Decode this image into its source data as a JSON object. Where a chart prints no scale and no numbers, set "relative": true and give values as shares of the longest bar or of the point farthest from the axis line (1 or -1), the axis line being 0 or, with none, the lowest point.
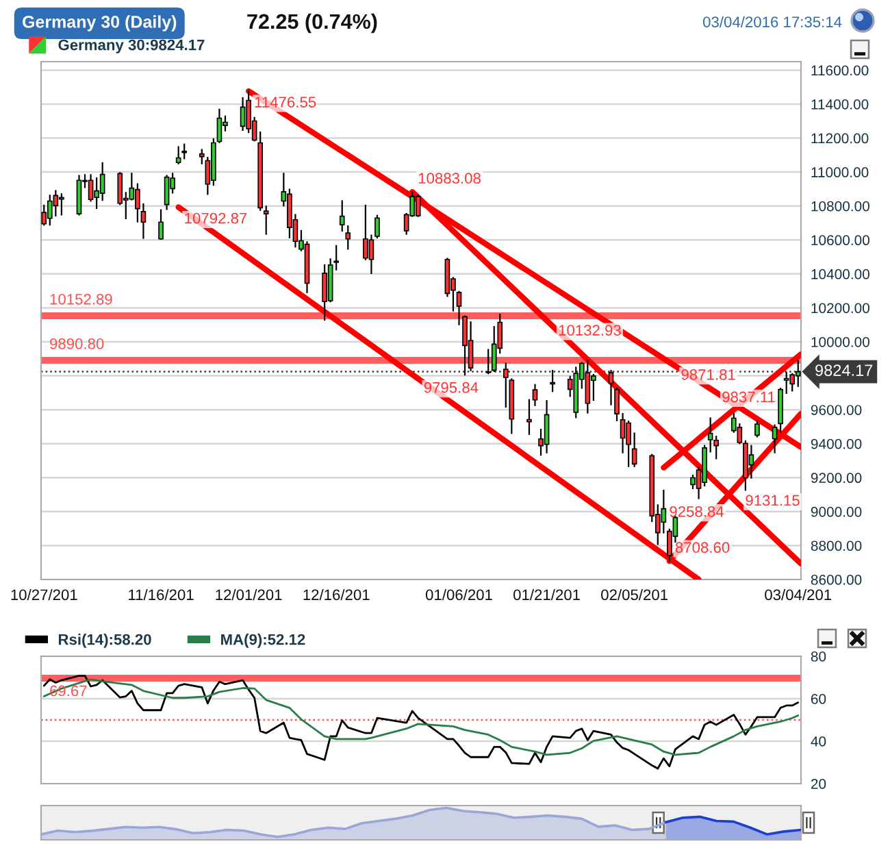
{
  "chart_data": [
    {
      "type": "candlestick",
      "title": "Germany 30 (Daily)",
      "subtitle": "72.25 (0.74%)",
      "annotations": [
        "03/04/2016 17:35:14",
        {
          "text": "11476.55",
          "x": "2015-12-01",
          "y": 11476.55
        },
        {
          "text": "10792.87",
          "x": "2015-11-19",
          "y": 10792.87
        },
        {
          "text": "10883.08",
          "x": "2015-12-29",
          "y": 10883.08
        },
        {
          "text": "9795.84",
          "x": "2015-12-30",
          "y": 9795.84
        },
        {
          "text": "10132.93",
          "x": "2016-01-22",
          "y": 10132.93
        },
        {
          "text": "9871.81",
          "x": "2016-02-12",
          "y": 9871.81
        },
        {
          "text": "9837.11",
          "x": "2016-02-19",
          "y": 9837.11
        },
        {
          "text": "9258.84",
          "x": "2016-02-10",
          "y": 9258.84
        },
        {
          "text": "9131.15",
          "x": "2016-02-23",
          "y": 9131.15
        },
        {
          "text": "8708.60",
          "x": "2016-02-11",
          "y": 8708.6
        }
      ],
      "x": [
        "2015-10-27",
        "2015-10-28",
        "2015-10-29",
        "2015-10-30",
        "2015-11-02",
        "2015-11-03",
        "2015-11-04",
        "2015-11-05",
        "2015-11-06",
        "2015-11-09",
        "2015-11-10",
        "2015-11-11",
        "2015-11-12",
        "2015-11-13",
        "2015-11-16",
        "2015-11-17",
        "2015-11-18",
        "2015-11-19",
        "2015-11-20",
        "2015-11-23",
        "2015-11-24",
        "2015-11-25",
        "2015-11-26",
        "2015-11-27",
        "2015-11-30",
        "2015-12-01",
        "2015-12-02",
        "2015-12-03",
        "2015-12-04",
        "2015-12-07",
        "2015-12-08",
        "2015-12-09",
        "2015-12-10",
        "2015-12-11",
        "2015-12-14",
        "2015-12-15",
        "2015-12-16",
        "2015-12-17",
        "2015-12-18",
        "2015-12-21",
        "2015-12-22",
        "2015-12-23",
        "2015-12-28",
        "2015-12-29",
        "2015-12-30",
        "2016-01-04",
        "2016-01-05",
        "2016-01-06",
        "2016-01-07",
        "2016-01-08",
        "2016-01-11",
        "2016-01-12",
        "2016-01-13",
        "2016-01-14",
        "2016-01-15",
        "2016-01-18",
        "2016-01-19",
        "2016-01-20",
        "2016-01-21",
        "2016-01-22",
        "2016-01-25",
        "2016-01-26",
        "2016-01-27",
        "2016-01-28",
        "2016-01-29",
        "2016-02-01",
        "2016-02-02",
        "2016-02-03",
        "2016-02-04",
        "2016-02-05",
        "2016-02-08",
        "2016-02-09",
        "2016-02-10",
        "2016-02-11",
        "2016-02-12",
        "2016-02-15",
        "2016-02-16",
        "2016-02-17",
        "2016-02-18",
        "2016-02-19",
        "2016-02-22",
        "2016-02-23",
        "2016-02-24",
        "2016-02-25",
        "2016-02-26",
        "2016-02-29",
        "2016-03-01",
        "2016-03-02",
        "2016-03-03",
        "2016-03-04"
      ],
      "series": [
        {
          "name": "Germany 30:9824.17",
          "ohlc": [
            [
              10762,
              10803,
              10689,
              10695
            ],
            [
              10727,
              10862,
              10689,
              10829
            ],
            [
              10862,
              10889,
              10743,
              10802
            ],
            [
              10850,
              10870,
              10749,
              10840
            ],
            [
              10754,
              10978,
              10749,
              10951
            ],
            [
              10945,
              10983,
              10910,
              10950
            ],
            [
              10951,
              10983,
              10830,
              10838
            ],
            [
              10851,
              10964,
              10787,
              10889
            ],
            [
              10875,
              11053,
              10835,
              10986
            ],
            [
              10991,
              10995,
              10810,
              10816
            ],
            [
              10845,
              10878,
              10727,
              10835
            ],
            [
              10840,
              10991,
              10837,
              10905
            ],
            [
              10897,
              10929,
              10708,
              10784
            ],
            [
              10767,
              10811,
              10611,
              10705
            ],
            [
              10606,
              10776,
              10606,
              10705
            ],
            [
              10808,
              10978,
              10781,
              10970
            ],
            [
              10902,
              10991,
              10878,
              10964
            ],
            [
              11056,
              11148,
              11050,
              11083
            ],
            [
              11115,
              11163,
              11080,
              11122
            ],
            [
              11107,
              11131,
              11050,
              11091
            ],
            [
              11067,
              11085,
              10870,
              10929
            ],
            [
              10951,
              11194,
              10924,
              11172
            ],
            [
              11180,
              11368,
              11175,
              11317
            ],
            [
              11274,
              11328,
              11244,
              11293
            ],
            [
              11269,
              11436,
              11247,
              11382
            ],
            [
              11422,
              11476.55,
              11234,
              11255
            ],
            [
              11301,
              11320,
              11185,
              11188
            ],
            [
              11172,
              11234,
              10776,
              10789
            ],
            [
              10770,
              10797,
              10635,
              10754
            ],
            [
              10829,
              10991,
              10802,
              10884
            ],
            [
              10870,
              10897,
              10614,
              10673
            ],
            [
              10719,
              10748,
              10560,
              10592
            ],
            [
              10546,
              10654,
              10538,
              10595
            ],
            [
              10574,
              10587,
              10291,
              10345
            ],
            [
              10404,
              10452,
              10129,
              10237
            ],
            [
              10242,
              10487,
              10237,
              10452
            ],
            [
              10468,
              10565,
              10425,
              10475
            ],
            [
              10689,
              10829,
              10654,
              10740
            ],
            [
              10641,
              10681,
              10547,
              10606
            ],
            [
              10606,
              10803,
              10485,
              10493
            ],
            [
              10600,
              10627,
              10404,
              10485
            ],
            [
              10622,
              10743,
              10614,
              10729
            ],
            [
              10749,
              10754,
              10635,
              10654
            ],
            [
              10743,
              10883.08,
              10740,
              10856
            ],
            [
              10856,
              10862,
              10740,
              10743
            ],
            [
              10485,
              10490,
              10269,
              10285
            ],
            [
              10371,
              10377,
              10183,
              10304
            ],
            [
              10291,
              10295,
              10102,
              10210
            ],
            [
              10148,
              10150,
              9806,
              9978
            ],
            [
              10008,
              10116,
              9832,
              9846
            ],
            [
              9822,
              9953,
              9814,
              9819
            ],
            [
              9833,
              10088,
              9827,
              9986
            ],
            [
              10115,
              10161,
              9935,
              9962
            ],
            [
              9838,
              9873,
              9617,
              9790
            ],
            [
              9774,
              9780,
              9462,
              9545
            ],
            [
              9542,
              9658,
              9456,
              9529
            ],
            [
              9717,
              9747,
              9626,
              9658
            ],
            [
              9428,
              9483,
              9334,
              9388
            ],
            [
              9396,
              9652,
              9348,
              9571
            ],
            [
              9752,
              9830,
              9709,
              9760
            ],
            [
              9779,
              9795,
              9680,
              9720
            ],
            [
              9585,
              9849,
              9555,
              9814
            ],
            [
              9779,
              9876,
              9728,
              9873
            ],
            [
              9818,
              9890,
              9582,
              9638
            ],
            [
              9773,
              9806,
              9657,
              9799
            ],
            [
              9818,
              9830,
              9631,
              9756
            ],
            [
              9719,
              9725,
              9537,
              9576
            ],
            [
              9541,
              9576,
              9348,
              9433
            ],
            [
              9522,
              9531,
              9267,
              9396
            ],
            [
              9369,
              9461,
              9267,
              9280
            ],
            [
              9329,
              9335,
              8943,
              8975
            ],
            [
              8983,
              9038,
              8808,
              8876
            ],
            [
              8938,
              9124,
              8876,
              9017
            ],
            [
              8884,
              8895,
              8708.6,
              8742
            ],
            [
              8855,
              8970,
              8822,
              8965
            ],
            [
              9159,
              9213,
              9137,
              9199
            ],
            [
              9245,
              9261,
              9078,
              9137
            ],
            [
              9172,
              9388,
              9153,
              9375
            ],
            [
              9423,
              9550,
              9353,
              9461
            ],
            [
              9420,
              9442,
              9313,
              9388
            ],
            [
              9477,
              9577,
              9469,
              9550
            ],
            [
              9496,
              9515,
              9402,
              9407
            ],
            [
              9401,
              9415,
              9127,
              9199
            ],
            [
              9275,
              9388,
              9199,
              9334
            ],
            [
              9450,
              9531,
              9442,
              9515
            ],
            [
              9429,
              9509,
              9348,
              9496
            ],
            [
              9518,
              9725,
              9469,
              9719
            ],
            [
              9774,
              9819,
              9698,
              9784
            ],
            [
              9806,
              9811,
              9712,
              9752
            ],
            [
              9800,
              9887,
              9739,
              9824.17
            ]
          ],
          "colors": [
            "#ff3333",
            "#33cc33",
            "#ff3333",
            "#ff3333",
            "#33cc33",
            "#33cc33",
            "#ff3333",
            "#33cc33",
            "#33cc33",
            "#ff3333",
            "#ff3333",
            "#33cc33",
            "#ff3333",
            "#ff3333",
            "#33cc33",
            "#33cc33",
            "#33cc33",
            "#33cc33",
            "#33cc33",
            "#ff3333",
            "#ff3333",
            "#33cc33",
            "#33cc33",
            "#33cc33",
            "#33cc33",
            "#ff3333",
            "#ff3333",
            "#ff3333",
            "#ff3333",
            "#33cc33",
            "#ff3333",
            "#ff3333",
            "#33cc33",
            "#ff3333",
            "#ff3333",
            "#33cc33",
            "#33cc33",
            "#33cc33",
            "#ff3333",
            "#ff3333",
            "#ff3333",
            "#33cc33",
            "#ff3333",
            "#33cc33",
            "#ff3333",
            "#ff3333",
            "#ff3333",
            "#ff3333",
            "#ff3333",
            "#ff3333",
            "#ff3333",
            "#33cc33",
            "#ff3333",
            "#ff3333",
            "#ff3333",
            "#ff3333",
            "#ff3333",
            "#ff3333",
            "#33cc33",
            "#33cc33",
            "#ff3333",
            "#33cc33",
            "#33cc33",
            "#ff3333",
            "#33cc33",
            "#ff3333",
            "#ff3333",
            "#ff3333",
            "#ff3333",
            "#ff3333",
            "#ff3333",
            "#ff3333",
            "#33cc33",
            "#ff3333",
            "#33cc33",
            "#33cc33",
            "#ff3333",
            "#33cc33",
            "#33cc33",
            "#ff3333",
            "#33cc33",
            "#ff3333",
            "#ff3333",
            "#33cc33",
            "#33cc33",
            "#33cc33",
            "#33cc33",
            "#33cc33",
            "#ff3333",
            "#33cc33"
          ]
        },
        {
          "type": "line",
          "color": "#ff0000",
          "x": [
            "2015-12-01",
            "2016-03-04T12:00"
          ],
          "values": [
            11476.55,
            9380
          ]
        },
        {
          "type": "line",
          "color": "#ff0000",
          "x": [
            "2015-12-29",
            "2016-03-04T12:00"
          ],
          "values": [
            10883.08,
            8693
          ]
        },
        {
          "type": "line",
          "color": "#ff0000",
          "x": [
            "2015-11-19",
            "2016-02-16"
          ],
          "values": [
            10792.87,
            8600
          ]
        },
        {
          "type": "line",
          "color": "#ff0000",
          "x": [
            "2016-02-10",
            "2016-03-04T12:00"
          ],
          "values": [
            9258.84,
            9927
          ]
        },
        {
          "type": "line",
          "color": "#ff0000",
          "x": [
            "2016-02-11",
            "2016-03-04T12:00"
          ],
          "values": [
            8708.6,
            9577
          ]
        }
      ],
      "xlim": [
        "2015-10-26T12:00",
        "2016-03-04T12:00"
      ],
      "xticks": [
        {
          "value": "2015-10-27",
          "label": "10/27/201"
        },
        {
          "value": "2015-11-16",
          "label": "11/16/201"
        },
        {
          "value": "2015-12-01",
          "label": "12/01/201"
        },
        {
          "value": "2015-12-16",
          "label": "12/16/201"
        },
        {
          "value": "2016-01-06",
          "label": "01/06/201"
        },
        {
          "value": "2016-01-21",
          "label": "01/21/201"
        },
        {
          "value": "2016-02-05",
          "label": "02/05/201"
        },
        {
          "value": "2016-03-04",
          "label": "03/04/201"
        }
      ],
      "ylim": [
        8600,
        11650
      ],
      "yticks": [
        {
          "value": 8600,
          "label": "8600.00"
        },
        {
          "value": 8800,
          "label": "8800.00"
        },
        {
          "value": 9000,
          "label": "9000.00"
        },
        {
          "value": 9200,
          "label": "9200.00"
        },
        {
          "value": 9400,
          "label": "9400.00"
        },
        {
          "value": 9600,
          "label": "9600.00"
        },
        {
          "value": 9800,
          "label": null
        },
        {
          "value": 10000,
          "label": "10000.00"
        },
        {
          "value": 10200,
          "label": "10200.00"
        },
        {
          "value": 10400,
          "label": "10400.00"
        },
        {
          "value": 10600,
          "label": "10600.00"
        },
        {
          "value": 10800,
          "label": "10800.00"
        },
        {
          "value": 11000,
          "label": "11000.00"
        },
        {
          "value": 11200,
          "label": "11200.00"
        },
        {
          "value": 11400,
          "label": "11400.00"
        },
        {
          "value": 11600,
          "label": "11600.00"
        }
      ],
      "ref_lines": [
        {
          "axis": "y",
          "value": 10152.89,
          "label": "10152.89",
          "color": "#ff4d4d"
        },
        {
          "axis": "y",
          "value": 9890.8,
          "label": "9890.80",
          "color": "#ff4d4d"
        },
        {
          "axis": "y",
          "value": 9824.17,
          "label": "9824.17",
          "color": "#3a3a3a",
          "line_style": "dotted"
        }
      ],
      "grid": "y",
      "legend": "top left"
    },
    {
      "type": "line",
      "x": [
        "2015-10-27",
        "2015-10-28",
        "2015-10-29",
        "2015-10-30",
        "2015-11-02",
        "2015-11-03",
        "2015-11-04",
        "2015-11-05",
        "2015-11-06",
        "2015-11-09",
        "2015-11-10",
        "2015-11-11",
        "2015-11-12",
        "2015-11-13",
        "2015-11-16",
        "2015-11-17",
        "2015-11-18",
        "2015-11-19",
        "2015-11-20",
        "2015-11-23",
        "2015-11-24",
        "2015-11-25",
        "2015-11-26",
        "2015-11-27",
        "2015-11-30",
        "2015-12-01",
        "2015-12-02",
        "2015-12-03",
        "2015-12-04",
        "2015-12-07",
        "2015-12-08",
        "2015-12-09",
        "2015-12-10",
        "2015-12-11",
        "2015-12-14",
        "2015-12-15",
        "2015-12-16",
        "2015-12-17",
        "2015-12-18",
        "2015-12-21",
        "2015-12-22",
        "2015-12-23",
        "2015-12-28",
        "2015-12-29",
        "2015-12-30",
        "2016-01-04",
        "2016-01-05",
        "2016-01-06",
        "2016-01-07",
        "2016-01-08",
        "2016-01-11",
        "2016-01-12",
        "2016-01-13",
        "2016-01-14",
        "2016-01-15",
        "2016-01-18",
        "2016-01-19",
        "2016-01-20",
        "2016-01-21",
        "2016-01-22",
        "2016-01-25",
        "2016-01-26",
        "2016-01-27",
        "2016-01-28",
        "2016-01-29",
        "2016-02-01",
        "2016-02-02",
        "2016-02-03",
        "2016-02-04",
        "2016-02-05",
        "2016-02-08",
        "2016-02-09",
        "2016-02-10",
        "2016-02-11",
        "2016-02-12",
        "2016-02-15",
        "2016-02-16",
        "2016-02-17",
        "2016-02-18",
        "2016-02-19",
        "2016-02-22",
        "2016-02-23",
        "2016-02-24",
        "2016-02-25",
        "2016-02-26",
        "2016-02-29",
        "2016-03-01",
        "2016-03-02",
        "2016-03-03",
        "2016-03-04"
      ],
      "series": [
        {
          "name": "Rsi(14):58.20",
          "color": "#000000",
          "values": [
            66.1,
            69.1,
            67.6,
            68.7,
            70.8,
            70.8,
            65.8,
            66.5,
            68.7,
            60.6,
            61.1,
            63.7,
            57.8,
            54.6,
            54.6,
            62.6,
            62.6,
            66.1,
            66.9,
            65.4,
            57.8,
            63.9,
            68,
            66.9,
            68.7,
            64.3,
            60.4,
            44.8,
            43.8,
            48.7,
            41.6,
            41,
            40.5,
            34,
            31.2,
            42.3,
            42.3,
            49.8,
            46.4,
            43.8,
            43.8,
            50.9,
            48.7,
            54.2,
            50.9,
            41,
            41,
            37.9,
            34.5,
            32.5,
            32.5,
            37.3,
            37.3,
            34.7,
            29.7,
            29.3,
            34.5,
            30.1,
            37.3,
            42.3,
            41.6,
            44.8,
            45.9,
            40.5,
            44.8,
            43.1,
            39.4,
            36.8,
            35.8,
            34,
            28.6,
            27.1,
            31.9,
            28.2,
            36.2,
            42.3,
            41,
            47.7,
            49.2,
            47.7,
            52.4,
            48.1,
            43.1,
            47,
            51.3,
            51.3,
            55.7,
            56.8,
            56.8,
            58.2
          ]
        },
        {
          "name": "MA(9):52.12",
          "color": "#2a7d4a",
          "x": [
            "2015-10-27",
            "2015-10-30",
            "2015-11-04",
            "2015-11-06",
            "2015-11-11",
            "2015-11-13",
            "2015-11-16",
            "2015-11-18",
            "2015-11-20",
            "2015-11-24",
            "2015-11-26",
            "2015-11-30",
            "2015-12-02",
            "2015-12-04",
            "2015-12-08",
            "2015-12-10",
            "2015-12-14",
            "2015-12-16",
            "2015-12-21",
            "2015-12-22",
            "2015-12-28",
            "2015-12-30",
            "2016-01-05",
            "2016-01-07",
            "2016-01-11",
            "2016-01-13",
            "2016-01-15",
            "2016-01-19",
            "2016-01-21",
            "2016-01-25",
            "2016-01-27",
            "2016-01-29",
            "2016-02-02",
            "2016-02-04",
            "2016-02-08",
            "2016-02-10",
            "2016-02-12",
            "2016-02-16",
            "2016-02-18",
            "2016-02-22",
            "2016-02-24",
            "2016-02-26",
            "2016-03-01",
            "2016-03-03",
            "2016-03-04"
          ],
          "values": [
            61.1,
            64.8,
            69.1,
            68.2,
            66.5,
            63.7,
            61.7,
            60.4,
            60.4,
            61.1,
            63.2,
            65,
            64.8,
            59.4,
            55.7,
            50.3,
            42.3,
            41,
            41,
            41.6,
            45.9,
            48.1,
            47,
            45.3,
            43.1,
            40.5,
            37.3,
            35.1,
            33.6,
            34.5,
            36.6,
            40.1,
            42.3,
            41,
            38.4,
            35.1,
            33.6,
            34.5,
            37.3,
            42.3,
            45.3,
            47,
            49.2,
            50.9,
            52.12
          ]
        }
      ],
      "xlim": [
        "2015-10-26T12:00",
        "2016-03-04T12:00"
      ],
      "ylim": [
        20,
        80
      ],
      "yticks": [
        20,
        40,
        60,
        80
      ],
      "ref_lines": [
        {
          "axis": "y",
          "value": 69.67,
          "label": "69.67",
          "color": "#ff4d4d"
        },
        {
          "axis": "y",
          "value": 50,
          "color": "#ff4d4d",
          "line_style": "dotted"
        }
      ],
      "grid": "y",
      "legend": "top left",
      "tick_labels": "y"
    },
    {
      "type": "area",
      "relative": true,
      "categories": [
        null,
        null,
        null,
        null,
        null,
        null,
        null,
        null,
        null,
        null,
        null,
        null,
        null,
        null,
        null,
        null,
        null,
        null,
        null,
        null,
        null,
        null,
        null,
        null,
        null,
        null,
        null,
        null,
        null,
        null,
        null,
        null,
        null,
        null,
        null,
        null,
        null,
        null,
        null,
        null,
        null,
        null,
        null,
        null,
        null,
        null
      ],
      "series": [
        {
          "color": "#9aa6d6",
          "values": [
            0.17,
            0.29,
            0.24,
            0.28,
            0.34,
            0.4,
            0.38,
            0.4,
            0.33,
            0.21,
            0.24,
            0.31,
            0.29,
            0.17,
            0.09,
            0.17,
            0.31,
            0.38,
            0.34,
            0.52,
            0.59,
            0.66,
            0.76,
            0.93,
            1,
            0.9,
            0.86,
            0.81,
            0.69,
            0.72,
            0.76,
            0.72,
            0.66,
            0.41,
            0.45,
            0.31,
            0.34,
            0.55,
            null,
            null,
            null,
            null,
            null,
            null,
            null,
            null
          ]
        },
        {
          "color": "#1b3fd1",
          "values": [
            null,
            null,
            null,
            null,
            null,
            null,
            null,
            null,
            null,
            null,
            null,
            null,
            null,
            null,
            null,
            null,
            null,
            null,
            null,
            null,
            null,
            null,
            null,
            null,
            null,
            null,
            null,
            null,
            null,
            null,
            null,
            null,
            null,
            null,
            null,
            null,
            null,
            0.55,
            0.69,
            0.72,
            0.59,
            0.57,
            0.38,
            0.17,
            0.26,
            0.31
          ]
        }
      ]
    }
  ]
}
